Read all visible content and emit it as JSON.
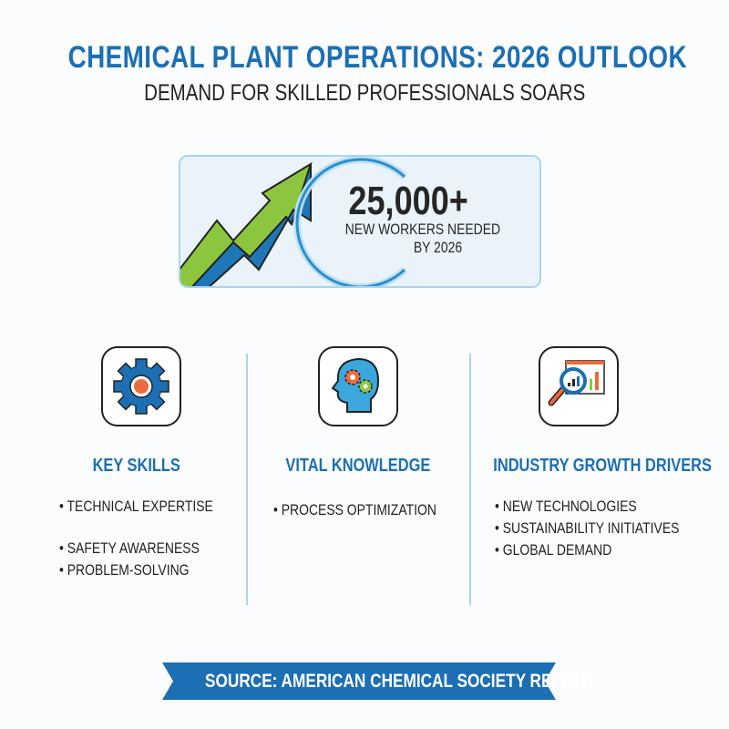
{
  "header": {
    "title": "CHEMICAL PLANT OPERATIONS: 2026 OUTLOOK",
    "subtitle": "DEMAND FOR SKILLED PROFESSIONALS SOARS"
  },
  "hero": {
    "number": "25,000+",
    "label_line1": "NEW WORKERS NEEDED",
    "label_line2": "BY 2026",
    "icon": "trending-up-arrow-icon"
  },
  "columns": [
    {
      "icon": "gear-icon",
      "heading": "KEY SKILLS",
      "bullets": [
        "• TECHNICAL EXPERTISE",
        "• SAFETY AWARENESS",
        "• PROBLEM-SOLVING"
      ]
    },
    {
      "icon": "head-gears-icon",
      "heading": "VITAL KNOWLEDGE",
      "bullets": [
        "• PROCESS OPTIMIZATION"
      ]
    },
    {
      "icon": "magnifier-chart-icon",
      "heading": "INDUSTRY GROWTH DRIVERS",
      "bullets": [
        "• NEW TECHNOLOGIES",
        "• SUSTAINABILITY INITIATIVES",
        "• GLOBAL DEMAND"
      ]
    }
  ],
  "footer": {
    "source": "SOURCE: AMERICAN CHEMICAL SOCIETY REPORT"
  },
  "colors": {
    "accent": "#1c6fb2",
    "green": "#8cc63f",
    "orange": "#ef6a3a",
    "hero_bg": "#e9f3f9"
  }
}
